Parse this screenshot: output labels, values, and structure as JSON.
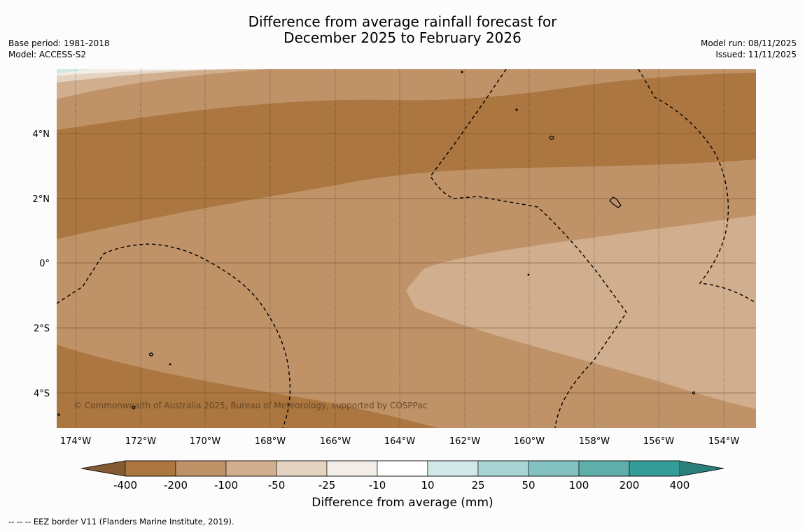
{
  "title": {
    "line1": "Difference from average rainfall forecast for",
    "line2": "December 2025 to February 2026"
  },
  "meta_left": {
    "base_period": "Base period: 1981-2018",
    "model": "Model: ACCESS-S2"
  },
  "meta_right": {
    "model_run": "Model run: 08/11/2025",
    "issued": "Issued: 11/11/2025"
  },
  "map": {
    "x_ticks": [
      "174°W",
      "172°W",
      "170°W",
      "168°W",
      "166°W",
      "164°W",
      "162°W",
      "160°W",
      "158°W",
      "156°W",
      "154°W"
    ],
    "y_ticks": [
      "4°N",
      "2°N",
      "0°",
      "2°S",
      "4°S"
    ],
    "copyright": "© Commonwealth of Australia 2025, Bureau of Meteorology, supported by COSPPac",
    "colors": {
      "lt_-200": "#ab763f",
      "-200_-100": "#bf9268",
      "-100_-50": "#d1af8e",
      "-50_-25": "#e5d3c2",
      "-25_-10": "#f2ede7",
      "-10_10": "#ffffff"
    }
  },
  "colorbar": {
    "labels": [
      "-400",
      "-200",
      "-100",
      "-50",
      "-25",
      "-10",
      "10",
      "25",
      "50",
      "100",
      "200",
      "400"
    ],
    "colors": [
      "#ab763f",
      "#bf9268",
      "#d1af8e",
      "#e5d3c2",
      "#f2ede7",
      "#ffffff",
      "#d2e8e6",
      "#a9d5d4",
      "#82c1bf",
      "#5eaeaa",
      "#339c97"
    ],
    "under_color": "#835a32",
    "over_color": "#2a7f7a",
    "title": "Difference from average (mm)"
  },
  "footnote": "--  --  -- EEZ border V11 (Flanders Marine Institute, 2019)."
}
